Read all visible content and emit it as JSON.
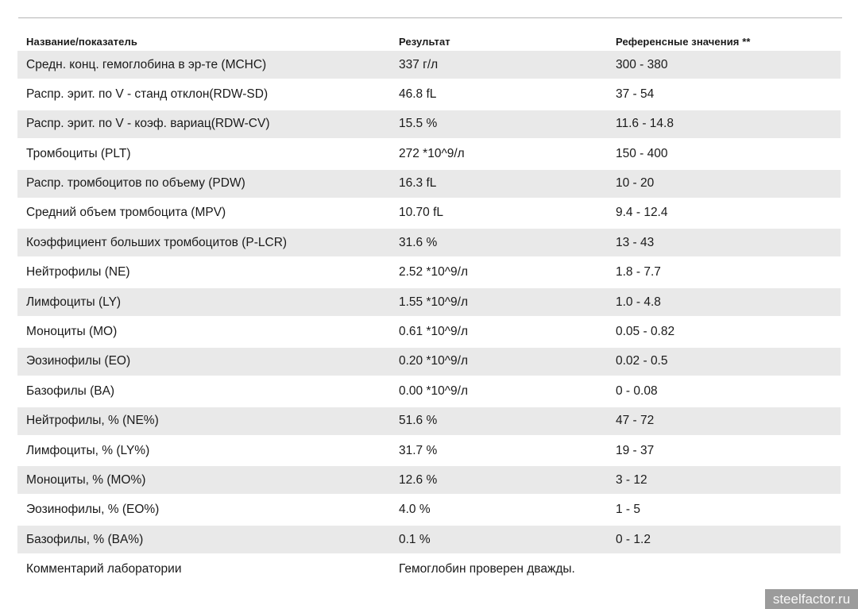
{
  "table": {
    "columns": [
      "Название/показатель",
      "Результат",
      "Референсные значения **"
    ],
    "rows": [
      {
        "name": "Средн. конц. гемоглобина в эр-те (MCHC)",
        "flag": "",
        "result": "337 г/л",
        "reference": "300 - 380"
      },
      {
        "name": "Распр. эрит. по V - станд отклон(RDW-SD)",
        "flag": "",
        "result": "46.8 fL",
        "reference": "37 - 54"
      },
      {
        "name": "Распр. эрит. по V - коэф. вариац(RDW-CV)",
        "flag": "↑",
        "result": "15.5 %",
        "reference": "11.6 - 14.8"
      },
      {
        "name": "Тромбоциты (PLT)",
        "flag": "",
        "result": "272 *10^9/л",
        "reference": "150 - 400"
      },
      {
        "name": "Распр. тромбоцитов по объему (PDW)",
        "flag": "",
        "result": "16.3 fL",
        "reference": "10 - 20"
      },
      {
        "name": "Средний объем тромбоцита (MPV)",
        "flag": "",
        "result": "10.70 fL",
        "reference": "9.4 - 12.4"
      },
      {
        "name": "Коэффициент больших тромбоцитов (P-LCR)",
        "flag": "",
        "result": "31.6 %",
        "reference": "13 - 43"
      },
      {
        "name": "Нейтрофилы (NE)",
        "flag": "",
        "result": "2.52 *10^9/л",
        "reference": "1.8 - 7.7"
      },
      {
        "name": "Лимфоциты (LY)",
        "flag": "",
        "result": "1.55 *10^9/л",
        "reference": "1.0 - 4.8"
      },
      {
        "name": "Моноциты (MO)",
        "flag": "",
        "result": "0.61 *10^9/л",
        "reference": "0.05 - 0.82"
      },
      {
        "name": "Эозинофилы (EO)",
        "flag": "",
        "result": "0.20 *10^9/л",
        "reference": "0.02 - 0.5"
      },
      {
        "name": "Базофилы (BA)",
        "flag": "",
        "result": "0.00 *10^9/л",
        "reference": "0 - 0.08"
      },
      {
        "name": "Нейтрофилы, % (NE%)",
        "flag": "",
        "result": "51.6 %",
        "reference": "47 - 72"
      },
      {
        "name": "Лимфоциты, % (LY%)",
        "flag": "",
        "result": "31.7 %",
        "reference": "19 - 37"
      },
      {
        "name": "Моноциты, % (MO%)",
        "flag": "↑",
        "result": "12.6 %",
        "reference": "3 - 12"
      },
      {
        "name": "Эозинофилы, % (EO%)",
        "flag": "",
        "result": "4.0 %",
        "reference": "1 - 5"
      },
      {
        "name": "Базофилы, % (BA%)",
        "flag": "",
        "result": "0.1 %",
        "reference": "0 - 1.2"
      },
      {
        "name": "Комментарий лаборатории",
        "flag": "",
        "result": "Гемоглобин проверен дважды.",
        "reference": ""
      }
    ],
    "colors": {
      "zebra": "#e9e9e9",
      "text": "#1a1a1a",
      "rule": "#b5b5b5"
    }
  },
  "watermark": {
    "label": "steelfactor.ru",
    "background": "#9b9b9b",
    "text_color": "#f8f8f8"
  }
}
